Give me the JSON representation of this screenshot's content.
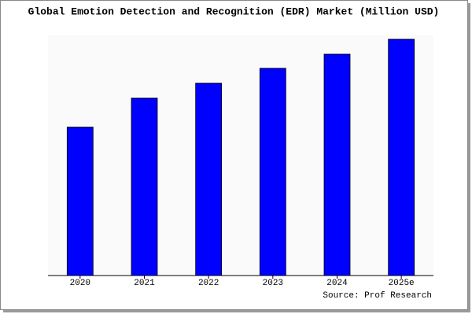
{
  "chart_data": {
    "type": "bar",
    "title": "Global Emotion Detection and Recognition (EDR) Market (Million USD)",
    "source": "Source: Prof Research",
    "categories": [
      "2020",
      "2021",
      "2022",
      "2023",
      "2024",
      "2025e"
    ],
    "values": [
      189,
      226,
      245,
      264,
      282,
      301
    ],
    "color": "#0000ff"
  }
}
